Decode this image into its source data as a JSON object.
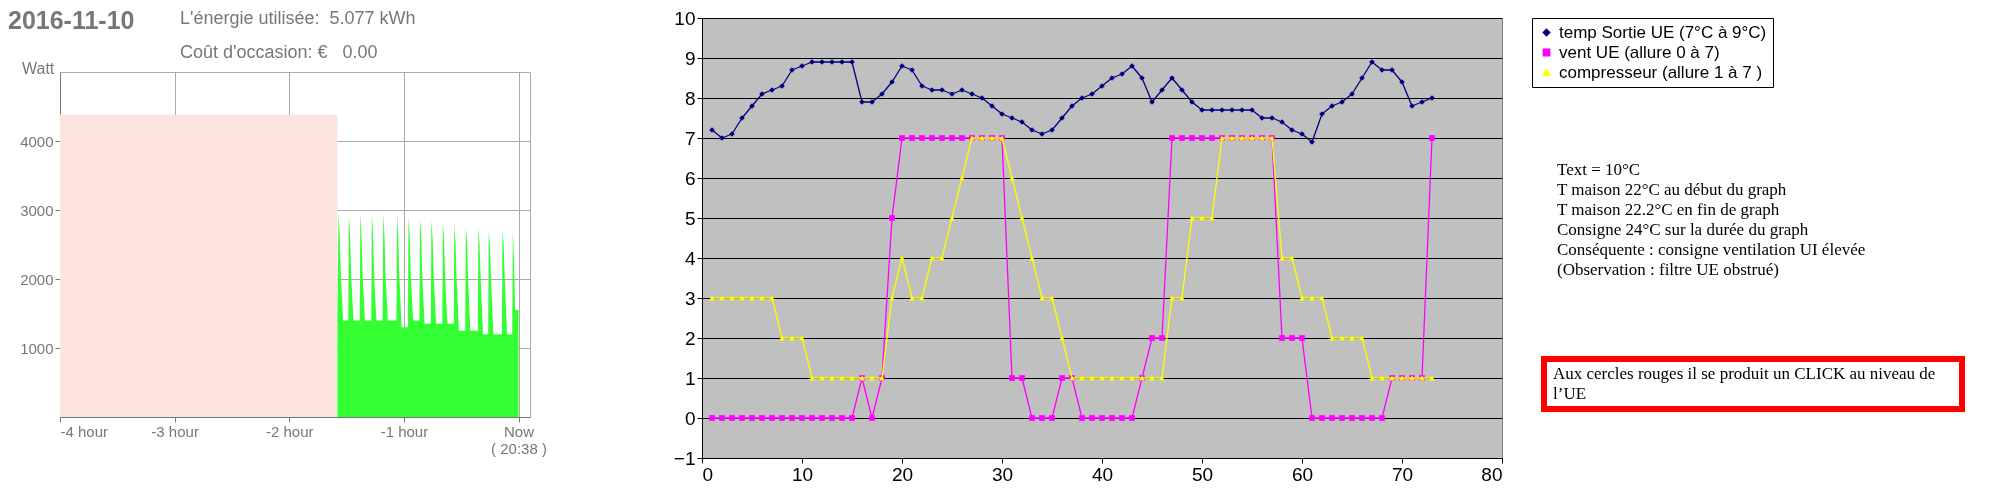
{
  "chart_data": [
    {
      "type": "area",
      "title": "2016-11-10",
      "ylabel": "Watt",
      "annotations": [
        "L'énergie utilisée:  5.077 kWh",
        "Coût d'occasion: €   0.00"
      ],
      "xlim": [
        -4,
        0.1
      ],
      "xticks": [
        {
          "value": -4,
          "label": "-4 hour"
        },
        {
          "value": -3,
          "label": "-3 hour"
        },
        {
          "value": -2,
          "label": "-2 hour"
        },
        {
          "value": -1,
          "label": "-1 hour"
        },
        {
          "value": 0,
          "label": "Now\n( 20:38 )"
        }
      ],
      "ylim": [
        0,
        5000
      ],
      "yticks": [
        1000,
        2000,
        3000,
        4000
      ],
      "grid": true,
      "series": [
        {
          "color": "#fce4de",
          "x": [
            -4,
            -1.58
          ],
          "values": [
            4380,
            4380
          ]
        },
        {
          "color": "#33ff33",
          "x": [
            -1.58,
            -1.57,
            -1.56,
            -1.55,
            -1.53,
            -1.485,
            -1.48,
            -1.47,
            -1.46,
            -1.44,
            -1.385,
            -1.38,
            -1.37,
            -1.36,
            -1.34,
            -1.285,
            -1.28,
            -1.27,
            -1.26,
            -1.24,
            -1.185,
            -1.18,
            -1.17,
            -1.16,
            -1.14,
            -1.065,
            -1.06,
            -1.05,
            -1.04,
            -1.02,
            -0.965,
            -0.96,
            -0.95,
            -0.94,
            -0.92,
            -0.865,
            -0.86,
            -0.85,
            -0.84,
            -0.82,
            -0.765,
            -0.76,
            -0.75,
            -0.74,
            -0.72,
            -0.665,
            -0.66,
            -0.65,
            -0.64,
            -0.62,
            -0.565,
            -0.56,
            -0.55,
            -0.54,
            -0.52,
            -0.465,
            -0.46,
            -0.45,
            -0.44,
            -0.42,
            -0.355,
            -0.35,
            -0.34,
            -0.33,
            -0.31,
            -0.265,
            -0.26,
            -0.25,
            -0.24,
            -0.22,
            -0.145,
            -0.14,
            -0.13,
            -0.12,
            -0.1,
            -0.055,
            -0.05,
            -0.04,
            -0.03,
            0
          ],
          "values": [
            1400,
            2950,
            2650,
            2050,
            1400,
            1400,
            2950,
            2650,
            2050,
            1400,
            1400,
            2950,
            2650,
            2050,
            1400,
            1400,
            2950,
            2650,
            2050,
            1400,
            1400,
            2950,
            2650,
            2050,
            1400,
            1400,
            2950,
            2650,
            2050,
            1300,
            1300,
            2900,
            2650,
            2050,
            1400,
            1400,
            2880,
            2650,
            2050,
            1350,
            1350,
            2850,
            2600,
            2050,
            1350,
            1350,
            2820,
            2600,
            2000,
            1350,
            1350,
            2800,
            2550,
            2000,
            1250,
            1250,
            2750,
            2550,
            2000,
            1250,
            1250,
            2750,
            2500,
            2000,
            1200,
            1200,
            2700,
            2500,
            2000,
            1200,
            1200,
            2720,
            2500,
            2000,
            1200,
            1200,
            2700,
            2250,
            1550,
            1550
          ]
        }
      ]
    },
    {
      "type": "line",
      "xlim": [
        0,
        80
      ],
      "xticks": [
        0,
        10,
        20,
        30,
        40,
        50,
        60,
        70,
        80
      ],
      "ylim": [
        -1,
        10
      ],
      "yticks": [
        -1,
        0,
        1,
        2,
        3,
        4,
        5,
        6,
        7,
        8,
        9,
        10
      ],
      "grid": "y",
      "legend": "right",
      "x": [
        1,
        2,
        3,
        4,
        5,
        6,
        7,
        8,
        9,
        10,
        11,
        12,
        13,
        14,
        15,
        16,
        17,
        18,
        19,
        20,
        21,
        22,
        23,
        24,
        25,
        26,
        27,
        28,
        29,
        30,
        31,
        32,
        33,
        34,
        35,
        36,
        37,
        38,
        39,
        40,
        41,
        42,
        43,
        44,
        45,
        46,
        47,
        48,
        49,
        50,
        51,
        52,
        53,
        54,
        55,
        56,
        57,
        58,
        59,
        60,
        61,
        62,
        63,
        64,
        65,
        66,
        67,
        68,
        69,
        70,
        71,
        72,
        73
      ],
      "annotations": [
        "Text = 10°C",
        "T maison 22°C au début du graph",
        "T maison 22.2°C en fin de graph",
        "Consigne 24°C sur la durée du graph",
        "Conséquente : consigne ventilation UI élevée",
        "(Observation : filtre UE obstrué)",
        "Aux cercles rouges il se produit un CLICK au niveau de l’UE"
      ],
      "series": [
        {
          "name": "temp Sortie UE (7°C à 9°C)",
          "color": "#000080",
          "marker": "diamond",
          "values": [
            7.2,
            7.0,
            7.1,
            7.5,
            7.8,
            8.1,
            8.2,
            8.3,
            8.7,
            8.8,
            8.9,
            8.9,
            8.9,
            8.9,
            8.9,
            7.9,
            7.9,
            8.1,
            8.4,
            8.8,
            8.7,
            8.3,
            8.2,
            8.2,
            8.1,
            8.2,
            8.1,
            8.0,
            7.8,
            7.6,
            7.5,
            7.4,
            7.2,
            7.1,
            7.2,
            7.5,
            7.8,
            8.0,
            8.1,
            8.3,
            8.5,
            8.6,
            8.8,
            8.5,
            7.9,
            8.2,
            8.5,
            8.2,
            7.9,
            7.7,
            7.7,
            7.7,
            7.7,
            7.7,
            7.7,
            7.5,
            7.5,
            7.4,
            7.2,
            7.1,
            6.9,
            7.6,
            7.8,
            7.9,
            8.1,
            8.5,
            8.9,
            8.7,
            8.7,
            8.4,
            7.8,
            7.9,
            8.0
          ]
        },
        {
          "name": "vent UE (allure 0 à 7)",
          "color": "#ff00ff",
          "marker": "square",
          "values": [
            0,
            0,
            0,
            0,
            0,
            0,
            0,
            0,
            0,
            0,
            0,
            0,
            0,
            0,
            0,
            1,
            0,
            1,
            5,
            7,
            7,
            7,
            7,
            7,
            7,
            7,
            7,
            7,
            7,
            7,
            1,
            1,
            0,
            0,
            0,
            1,
            1,
            0,
            0,
            0,
            0,
            0,
            0,
            1,
            2,
            2,
            7,
            7,
            7,
            7,
            7,
            7,
            7,
            7,
            7,
            7,
            7,
            2,
            2,
            2,
            0,
            0,
            0,
            0,
            0,
            0,
            0,
            0,
            1,
            1,
            1,
            1,
            7
          ]
        },
        {
          "name": "compresseur (allure 1 à 7 )",
          "color": "#ffff00",
          "marker": "triangle",
          "values": [
            3,
            3,
            3,
            3,
            3,
            3,
            3,
            2,
            2,
            2,
            1,
            1,
            1,
            1,
            1,
            1,
            1,
            1,
            3,
            4,
            3,
            3,
            4,
            4,
            5,
            6,
            7,
            7,
            7,
            7,
            6,
            5,
            4,
            3,
            3,
            2,
            1,
            1,
            1,
            1,
            1,
            1,
            1,
            1,
            1,
            1,
            3,
            3,
            5,
            5,
            5,
            7,
            7,
            7,
            7,
            7,
            7,
            4,
            4,
            3,
            3,
            3,
            2,
            2,
            2,
            2,
            1,
            1,
            1,
            1,
            1,
            1,
            1
          ]
        }
      ]
    }
  ]
}
